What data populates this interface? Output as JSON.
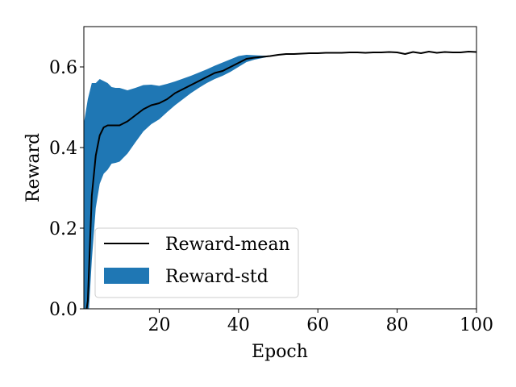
{
  "chart_data": {
    "type": "line",
    "xlabel": "Epoch",
    "ylabel": "Reward",
    "xlim": [
      1,
      100
    ],
    "ylim": [
      0.0,
      0.7
    ],
    "xticks": [
      20,
      40,
      60,
      80,
      100
    ],
    "xtick_labels": [
      "20",
      "40",
      "60",
      "80",
      "100"
    ],
    "yticks": [
      0.0,
      0.2,
      0.4,
      0.6
    ],
    "ytick_labels": [
      "0.0",
      "0.2",
      "0.4",
      "0.6"
    ],
    "grid": false,
    "legend_position": "lower-left",
    "series": [
      {
        "name": "Reward-mean",
        "kind": "line",
        "color": "#000000",
        "x": [
          1,
          2,
          3,
          4,
          5,
          6,
          7,
          8,
          9,
          10,
          12,
          14,
          16,
          18,
          20,
          22,
          24,
          26,
          28,
          30,
          32,
          34,
          36,
          38,
          40,
          42,
          44,
          46,
          48,
          50,
          52,
          54,
          56,
          58,
          60,
          62,
          64,
          66,
          68,
          70,
          72,
          74,
          76,
          78,
          80,
          82,
          84,
          86,
          88,
          90,
          92,
          94,
          96,
          98,
          100
        ],
        "y": [
          -0.05,
          0.02,
          0.28,
          0.38,
          0.43,
          0.45,
          0.455,
          0.455,
          0.455,
          0.455,
          0.465,
          0.48,
          0.495,
          0.505,
          0.51,
          0.52,
          0.535,
          0.545,
          0.555,
          0.565,
          0.575,
          0.585,
          0.59,
          0.6,
          0.61,
          0.62,
          0.623,
          0.625,
          0.627,
          0.63,
          0.632,
          0.632,
          0.633,
          0.634,
          0.634,
          0.635,
          0.635,
          0.635,
          0.636,
          0.636,
          0.635,
          0.636,
          0.636,
          0.637,
          0.636,
          0.632,
          0.637,
          0.634,
          0.638,
          0.635,
          0.637,
          0.636,
          0.636,
          0.638,
          0.637
        ]
      },
      {
        "name": "Reward-std",
        "kind": "band",
        "color": "#1f77b4",
        "x": [
          1,
          2,
          3,
          4,
          5,
          6,
          7,
          8,
          9,
          10,
          12,
          14,
          16,
          18,
          20,
          22,
          24,
          26,
          28,
          30,
          32,
          34,
          36,
          38,
          40,
          42,
          44,
          46,
          48,
          50
        ],
        "upper": [
          0.46,
          0.52,
          0.56,
          0.56,
          0.57,
          0.565,
          0.56,
          0.55,
          0.548,
          0.548,
          0.542,
          0.548,
          0.555,
          0.556,
          0.553,
          0.558,
          0.564,
          0.571,
          0.578,
          0.586,
          0.594,
          0.603,
          0.611,
          0.619,
          0.627,
          0.63,
          0.629,
          0.628,
          0.628,
          0.63
        ],
        "lower": [
          -0.05,
          -0.05,
          0.12,
          0.25,
          0.31,
          0.335,
          0.345,
          0.36,
          0.362,
          0.365,
          0.385,
          0.413,
          0.44,
          0.458,
          0.47,
          0.488,
          0.505,
          0.52,
          0.535,
          0.548,
          0.56,
          0.57,
          0.578,
          0.588,
          0.6,
          0.612,
          0.618,
          0.622,
          0.626,
          0.63
        ]
      }
    ]
  }
}
